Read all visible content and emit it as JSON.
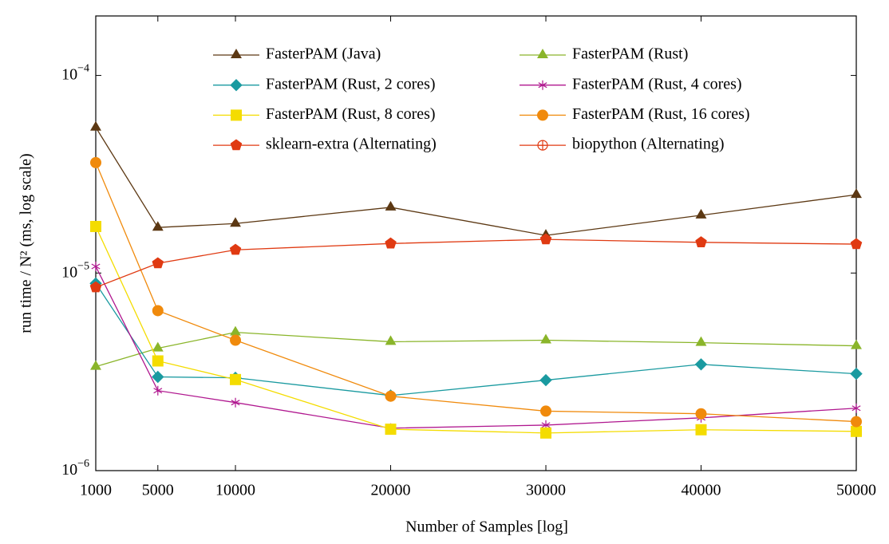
{
  "chart_data": {
    "type": "line",
    "xlabel": "Number of Samples [log]",
    "ylabel": "run time / N² (ms, log scale)",
    "x": [
      1000,
      5000,
      10000,
      20000,
      30000,
      40000,
      50000
    ],
    "xlim": [
      1000,
      50000
    ],
    "xticks": [
      1000,
      5000,
      10000,
      20000,
      30000,
      40000,
      50000
    ],
    "ylim": [
      1e-06,
      0.0002
    ],
    "yscale": "log",
    "yticks": [
      {
        "value": 1e-06,
        "label": "10−6"
      },
      {
        "value": 1e-05,
        "label": "10−5"
      },
      {
        "value": 0.0001,
        "label": "10−4"
      }
    ],
    "legend": "top",
    "series": [
      {
        "name": "FasterPAM (Java)",
        "color": "#5c3813",
        "marker": "triangle",
        "values": [
          5.46e-05,
          1.7e-05,
          1.78e-05,
          2.15e-05,
          1.55e-05,
          1.96e-05,
          2.49e-05
        ]
      },
      {
        "name": "FasterPAM (Rust)",
        "color": "#8ab52a",
        "marker": "triangle",
        "values": [
          3.36e-06,
          4.16e-06,
          5.01e-06,
          4.49e-06,
          4.57e-06,
          4.44e-06,
          4.28e-06
        ]
      },
      {
        "name": "FasterPAM (Rust, 2 cores)",
        "color": "#1a9aa0",
        "marker": "diamond",
        "values": [
          8.86e-06,
          2.98e-06,
          2.95e-06,
          2.4e-06,
          2.87e-06,
          3.45e-06,
          3.09e-06
        ]
      },
      {
        "name": "FasterPAM (Rust, 4 cores)",
        "color": "#b0178f",
        "marker": "star",
        "values": [
          1.08e-05,
          2.54e-06,
          2.21e-06,
          1.64e-06,
          1.7e-06,
          1.85e-06,
          2.07e-06
        ]
      },
      {
        "name": "FasterPAM (Rust, 8 cores)",
        "color": "#f4dc00",
        "marker": "square",
        "values": [
          1.72e-05,
          3.59e-06,
          2.89e-06,
          1.62e-06,
          1.55e-06,
          1.61e-06,
          1.58e-06
        ]
      },
      {
        "name": "FasterPAM (Rust, 16 cores)",
        "color": "#f08a0c",
        "marker": "circle",
        "values": [
          3.62e-05,
          6.45e-06,
          4.57e-06,
          2.38e-06,
          2e-06,
          1.94e-06,
          1.77e-06
        ]
      },
      {
        "name": "sklearn-extra (Alternating)",
        "color": "#e03a12",
        "marker": "pentagon",
        "values": [
          8.46e-06,
          1.12e-05,
          1.31e-05,
          1.41e-05,
          1.48e-05,
          1.43e-05,
          1.4e-05
        ]
      },
      {
        "name": "biopython (Alternating)",
        "color": "#e03a12",
        "marker": "oplus",
        "values": [
          null,
          null,
          null,
          null,
          null,
          null,
          null
        ]
      }
    ]
  }
}
